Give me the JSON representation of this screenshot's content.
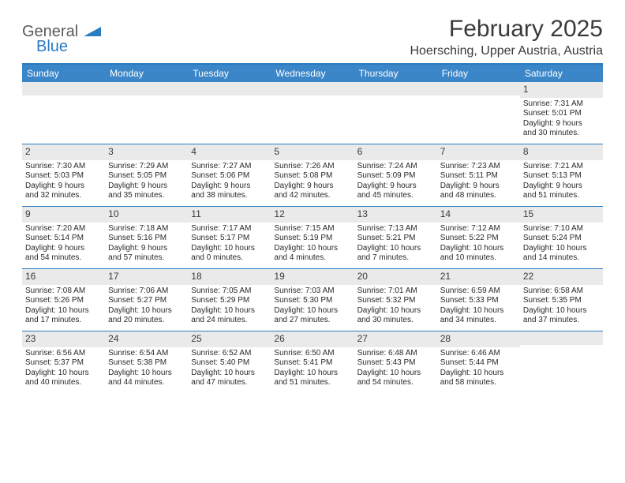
{
  "brand": {
    "general": "General",
    "blue": "Blue"
  },
  "title": "February 2025",
  "location": "Hoersching, Upper Austria, Austria",
  "colors": {
    "header_bar": "#3a86c8",
    "accent": "#2b7bbf",
    "day_num_bg": "#eaeaea",
    "text": "#3a3a3a"
  },
  "day_names": [
    "Sunday",
    "Monday",
    "Tuesday",
    "Wednesday",
    "Thursday",
    "Friday",
    "Saturday"
  ],
  "weeks": [
    [
      {
        "empty": true
      },
      {
        "empty": true
      },
      {
        "empty": true
      },
      {
        "empty": true
      },
      {
        "empty": true
      },
      {
        "empty": true
      },
      {
        "num": "1",
        "sunrise": "Sunrise: 7:31 AM",
        "sunset": "Sunset: 5:01 PM",
        "day1": "Daylight: 9 hours",
        "day2": "and 30 minutes."
      }
    ],
    [
      {
        "num": "2",
        "sunrise": "Sunrise: 7:30 AM",
        "sunset": "Sunset: 5:03 PM",
        "day1": "Daylight: 9 hours",
        "day2": "and 32 minutes."
      },
      {
        "num": "3",
        "sunrise": "Sunrise: 7:29 AM",
        "sunset": "Sunset: 5:05 PM",
        "day1": "Daylight: 9 hours",
        "day2": "and 35 minutes."
      },
      {
        "num": "4",
        "sunrise": "Sunrise: 7:27 AM",
        "sunset": "Sunset: 5:06 PM",
        "day1": "Daylight: 9 hours",
        "day2": "and 38 minutes."
      },
      {
        "num": "5",
        "sunrise": "Sunrise: 7:26 AM",
        "sunset": "Sunset: 5:08 PM",
        "day1": "Daylight: 9 hours",
        "day2": "and 42 minutes."
      },
      {
        "num": "6",
        "sunrise": "Sunrise: 7:24 AM",
        "sunset": "Sunset: 5:09 PM",
        "day1": "Daylight: 9 hours",
        "day2": "and 45 minutes."
      },
      {
        "num": "7",
        "sunrise": "Sunrise: 7:23 AM",
        "sunset": "Sunset: 5:11 PM",
        "day1": "Daylight: 9 hours",
        "day2": "and 48 minutes."
      },
      {
        "num": "8",
        "sunrise": "Sunrise: 7:21 AM",
        "sunset": "Sunset: 5:13 PM",
        "day1": "Daylight: 9 hours",
        "day2": "and 51 minutes."
      }
    ],
    [
      {
        "num": "9",
        "sunrise": "Sunrise: 7:20 AM",
        "sunset": "Sunset: 5:14 PM",
        "day1": "Daylight: 9 hours",
        "day2": "and 54 minutes."
      },
      {
        "num": "10",
        "sunrise": "Sunrise: 7:18 AM",
        "sunset": "Sunset: 5:16 PM",
        "day1": "Daylight: 9 hours",
        "day2": "and 57 minutes."
      },
      {
        "num": "11",
        "sunrise": "Sunrise: 7:17 AM",
        "sunset": "Sunset: 5:17 PM",
        "day1": "Daylight: 10 hours",
        "day2": "and 0 minutes."
      },
      {
        "num": "12",
        "sunrise": "Sunrise: 7:15 AM",
        "sunset": "Sunset: 5:19 PM",
        "day1": "Daylight: 10 hours",
        "day2": "and 4 minutes."
      },
      {
        "num": "13",
        "sunrise": "Sunrise: 7:13 AM",
        "sunset": "Sunset: 5:21 PM",
        "day1": "Daylight: 10 hours",
        "day2": "and 7 minutes."
      },
      {
        "num": "14",
        "sunrise": "Sunrise: 7:12 AM",
        "sunset": "Sunset: 5:22 PM",
        "day1": "Daylight: 10 hours",
        "day2": "and 10 minutes."
      },
      {
        "num": "15",
        "sunrise": "Sunrise: 7:10 AM",
        "sunset": "Sunset: 5:24 PM",
        "day1": "Daylight: 10 hours",
        "day2": "and 14 minutes."
      }
    ],
    [
      {
        "num": "16",
        "sunrise": "Sunrise: 7:08 AM",
        "sunset": "Sunset: 5:26 PM",
        "day1": "Daylight: 10 hours",
        "day2": "and 17 minutes."
      },
      {
        "num": "17",
        "sunrise": "Sunrise: 7:06 AM",
        "sunset": "Sunset: 5:27 PM",
        "day1": "Daylight: 10 hours",
        "day2": "and 20 minutes."
      },
      {
        "num": "18",
        "sunrise": "Sunrise: 7:05 AM",
        "sunset": "Sunset: 5:29 PM",
        "day1": "Daylight: 10 hours",
        "day2": "and 24 minutes."
      },
      {
        "num": "19",
        "sunrise": "Sunrise: 7:03 AM",
        "sunset": "Sunset: 5:30 PM",
        "day1": "Daylight: 10 hours",
        "day2": "and 27 minutes."
      },
      {
        "num": "20",
        "sunrise": "Sunrise: 7:01 AM",
        "sunset": "Sunset: 5:32 PM",
        "day1": "Daylight: 10 hours",
        "day2": "and 30 minutes."
      },
      {
        "num": "21",
        "sunrise": "Sunrise: 6:59 AM",
        "sunset": "Sunset: 5:33 PM",
        "day1": "Daylight: 10 hours",
        "day2": "and 34 minutes."
      },
      {
        "num": "22",
        "sunrise": "Sunrise: 6:58 AM",
        "sunset": "Sunset: 5:35 PM",
        "day1": "Daylight: 10 hours",
        "day2": "and 37 minutes."
      }
    ],
    [
      {
        "num": "23",
        "sunrise": "Sunrise: 6:56 AM",
        "sunset": "Sunset: 5:37 PM",
        "day1": "Daylight: 10 hours",
        "day2": "and 40 minutes."
      },
      {
        "num": "24",
        "sunrise": "Sunrise: 6:54 AM",
        "sunset": "Sunset: 5:38 PM",
        "day1": "Daylight: 10 hours",
        "day2": "and 44 minutes."
      },
      {
        "num": "25",
        "sunrise": "Sunrise: 6:52 AM",
        "sunset": "Sunset: 5:40 PM",
        "day1": "Daylight: 10 hours",
        "day2": "and 47 minutes."
      },
      {
        "num": "26",
        "sunrise": "Sunrise: 6:50 AM",
        "sunset": "Sunset: 5:41 PM",
        "day1": "Daylight: 10 hours",
        "day2": "and 51 minutes."
      },
      {
        "num": "27",
        "sunrise": "Sunrise: 6:48 AM",
        "sunset": "Sunset: 5:43 PM",
        "day1": "Daylight: 10 hours",
        "day2": "and 54 minutes."
      },
      {
        "num": "28",
        "sunrise": "Sunrise: 6:46 AM",
        "sunset": "Sunset: 5:44 PM",
        "day1": "Daylight: 10 hours",
        "day2": "and 58 minutes."
      },
      {
        "empty": true
      }
    ]
  ]
}
